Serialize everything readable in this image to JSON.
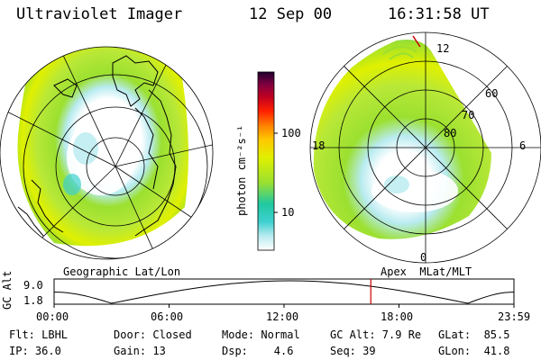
{
  "header": {
    "instrument": "Ultraviolet Imager",
    "date": "12 Sep 00",
    "time": "16:31:58 UT"
  },
  "colorbar": {
    "unit_label": "photon cm⁻²s⁻¹",
    "ticks": [
      "100",
      "10"
    ],
    "colors": [
      "#ffffff",
      "#b8ebf0",
      "#3ed0d0",
      "#20c8a0",
      "#9be030",
      "#e0f000",
      "#ffc800",
      "#ff8000",
      "#ff2000",
      "#c00020",
      "#800040",
      "#200030"
    ]
  },
  "left_map": {
    "label": "Geographic Lat/Lon"
  },
  "right_map": {
    "label": "Apex  MLat/MLT",
    "mlt_labels": {
      "top": "12",
      "left": "18",
      "right": "6",
      "bottom": "0"
    },
    "lat_labels": [
      "60",
      "70",
      "80"
    ]
  },
  "timeline": {
    "axis_label": "GC Alt",
    "y_top": "9.0",
    "y_bottom": "1.8",
    "ticks": [
      "00:00",
      "06:00",
      "12:00",
      "18:00",
      "23:59"
    ],
    "current_time_hours": 16.53,
    "marker_color": "#cc0000"
  },
  "info": {
    "row1": {
      "flt": "Flt: LBHL",
      "door": "Door: Closed",
      "mode": "Mode: Normal",
      "gcalt": "GC Alt: 7.9 Re",
      "glat": "GLat:  85.5"
    },
    "row2": {
      "ip": "IP: 36.0",
      "gain": "Gain: 13",
      "dsp": "Dsp:    4.6",
      "seq": "Seq: 39",
      "glon": "GLon:  41.8"
    }
  }
}
